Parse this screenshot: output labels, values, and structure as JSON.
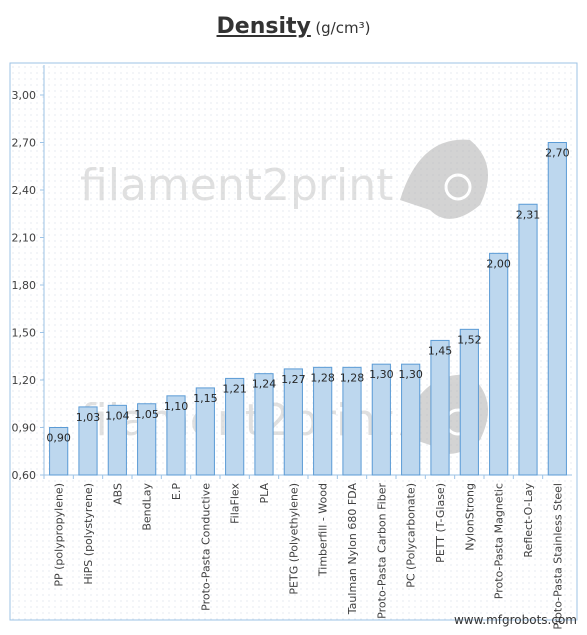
{
  "chart_data": {
    "type": "bar",
    "title": "Density",
    "title_unit": "(g/cm³)",
    "xlabel": "",
    "ylabel": "",
    "ylim": [
      0.6,
      3.0
    ],
    "yticks": [
      "0,60",
      "0,90",
      "1,20",
      "1,50",
      "1,80",
      "2,10",
      "2,40",
      "2,70",
      "3,00"
    ],
    "ytick_values": [
      0.6,
      0.9,
      1.2,
      1.5,
      1.8,
      2.1,
      2.4,
      2.7,
      3.0
    ],
    "grid": false,
    "bar_color": "#bdd7ee",
    "bar_edge_color": "#5b9bd5",
    "categories": [
      "PP (polypropylene)",
      "HiPS (polystyrene)",
      "ABS",
      "BendLay",
      "E.P",
      "Proto-Pasta Conductive",
      "FilaFlex",
      "PLA",
      "PETG (Polyethylene)",
      "Timberfill - Wood",
      "Taulman Nylon 680 FDA",
      "Proto-Pasta Carbon Fiber",
      "PC (Polycarbonate)",
      "PETT (T-Glase)",
      "NylonStrong",
      "Proto-Pasta Magnetic",
      "Reflect-O-Lay",
      "Proto-Pasta Stainless Steel"
    ],
    "values": [
      0.9,
      1.03,
      1.04,
      1.05,
      1.1,
      1.15,
      1.21,
      1.24,
      1.27,
      1.28,
      1.28,
      1.3,
      1.3,
      1.45,
      1.52,
      2.0,
      2.31,
      2.7
    ],
    "value_labels": [
      "0,90",
      "1,03",
      "1,04",
      "1,05",
      "1,10",
      "1,15",
      "1,21",
      "1,24",
      "1,27",
      "1,28",
      "1,28",
      "1,30",
      "1,30",
      "1,45",
      "1,52",
      "2,00",
      "2,31",
      "2,70"
    ]
  },
  "watermark": {
    "text": "filament2print",
    "color": "#c8c8c8"
  },
  "credit": "www.mfgrobots.com"
}
